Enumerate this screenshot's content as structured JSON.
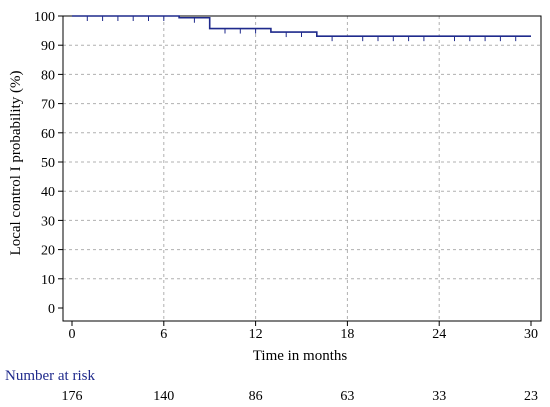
{
  "chart_data": {
    "type": "line",
    "title": "",
    "xlabel": "Time in months",
    "ylabel": "Local control I probability (%)",
    "xlim": [
      0,
      30
    ],
    "ylim": [
      0,
      100
    ],
    "x_ticks": [
      "0",
      "6",
      "12",
      "18",
      "24",
      "30"
    ],
    "y_ticks": [
      "0",
      "10",
      "20",
      "30",
      "40",
      "50",
      "60",
      "70",
      "80",
      "90",
      "100"
    ],
    "grid": true,
    "line_color": "#1f2a8c",
    "series": [
      {
        "x": [
          0,
          7,
          9,
          13,
          16,
          30
        ],
        "y": [
          100,
          99.4,
          95.7,
          94.5,
          93.1,
          93.1
        ]
      }
    ],
    "censor_marks": [
      {
        "x": 1,
        "y": 100
      },
      {
        "x": 2,
        "y": 100
      },
      {
        "x": 3,
        "y": 100
      },
      {
        "x": 4,
        "y": 100
      },
      {
        "x": 5,
        "y": 100
      },
      {
        "x": 6,
        "y": 100
      },
      {
        "x": 8,
        "y": 99.4
      },
      {
        "x": 10,
        "y": 95.7
      },
      {
        "x": 11,
        "y": 95.7
      },
      {
        "x": 12,
        "y": 95.7
      },
      {
        "x": 14,
        "y": 94.5
      },
      {
        "x": 15,
        "y": 94.5
      },
      {
        "x": 17,
        "y": 93.1
      },
      {
        "x": 19,
        "y": 93.1
      },
      {
        "x": 20,
        "y": 93.1
      },
      {
        "x": 21,
        "y": 93.1
      },
      {
        "x": 22,
        "y": 93.1
      },
      {
        "x": 23,
        "y": 93.1
      },
      {
        "x": 25,
        "y": 93.1
      },
      {
        "x": 26,
        "y": 93.1
      },
      {
        "x": 27,
        "y": 93.1
      },
      {
        "x": 28,
        "y": 93.1
      },
      {
        "x": 29,
        "y": 93.1
      }
    ],
    "number_at_risk": {
      "title": "Number at risk",
      "values": [
        "176",
        "140",
        "86",
        "63",
        "33",
        "23"
      ]
    }
  }
}
